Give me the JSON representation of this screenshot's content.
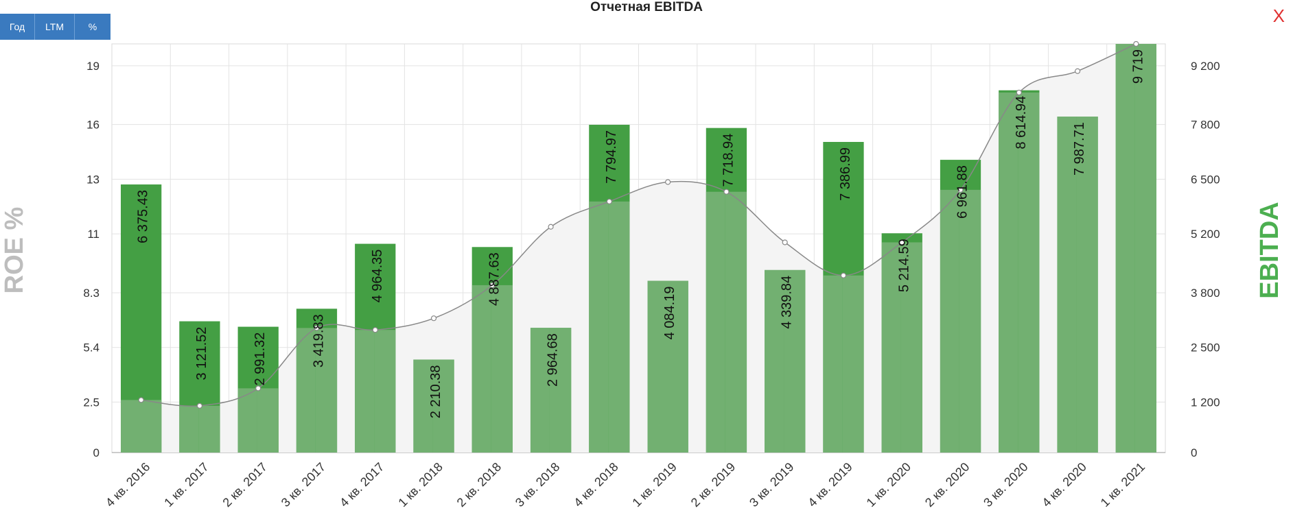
{
  "title": "Отчетная EBITDA",
  "buttons": [
    {
      "label": "Год"
    },
    {
      "label": "LTM"
    },
    {
      "label": "%"
    }
  ],
  "close_label": "X",
  "colors": {
    "bar_dark": "#449f44",
    "bar_light": "#72b071",
    "line": "#888888",
    "area": "#f4f4f4",
    "left_axis_title": "#bdbdbd",
    "right_axis_title": "#4caf50",
    "button": "#3a7abf",
    "close": "#e03030"
  },
  "chart_data": {
    "type": "bar",
    "title": "Отчетная EBITDA",
    "y_left_label": "ROE %",
    "y_right_label": "EBITDA",
    "y_left_ticks": [
      "0",
      "2.5",
      "5.4",
      "8.3",
      "11",
      "13",
      "16",
      "19"
    ],
    "y_right_ticks": [
      "0",
      "1 200",
      "2 500",
      "3 800",
      "5 200",
      "6 500",
      "7 800",
      "9 200"
    ],
    "y_left_lim": [
      0,
      21
    ],
    "y_right_lim": [
      0,
      9719
    ],
    "categories": [
      "4 кв. 2016",
      "1 кв. 2017",
      "2 кв. 2017",
      "3 кв. 2017",
      "4 кв. 2017",
      "1 кв. 2018",
      "2 кв. 2018",
      "3 кв. 2018",
      "4 кв. 2018",
      "1 кв. 2019",
      "2 кв. 2019",
      "3 кв. 2019",
      "4 кв. 2019",
      "1 кв. 2020",
      "2 кв. 2020",
      "3 кв. 2020",
      "4 кв. 2020",
      "1 кв. 2021"
    ],
    "ebitda": [
      6375.43,
      3121.52,
      2991.32,
      3419.83,
      4964.35,
      2210.38,
      4887.63,
      2964.68,
      7794.97,
      4084.19,
      7718.94,
      4339.84,
      7386.99,
      5214.59,
      6961.88,
      8614.94,
      7987.71,
      9719
    ],
    "bar_labels": [
      "6 375.43",
      "3 121.52",
      "2 991.32",
      "3 419.83",
      "4 964.35",
      "2 210.38",
      "4 887.63",
      "2 964.68",
      "7 794.97",
      "4 084.19",
      "7 718.94",
      "4 339.84",
      "7 386.99",
      "5 214.59",
      "6 961.88",
      "8 614.94",
      "7 987.71",
      "9 719"
    ],
    "roe": [
      2.7,
      2.4,
      3.3,
      6.4,
      6.3,
      6.9,
      8.6,
      11.6,
      12.9,
      13.9,
      13.4,
      10.8,
      9.1,
      10.8,
      13.5,
      18.5,
      19.6,
      21
    ],
    "grid": true,
    "legend": "none"
  }
}
